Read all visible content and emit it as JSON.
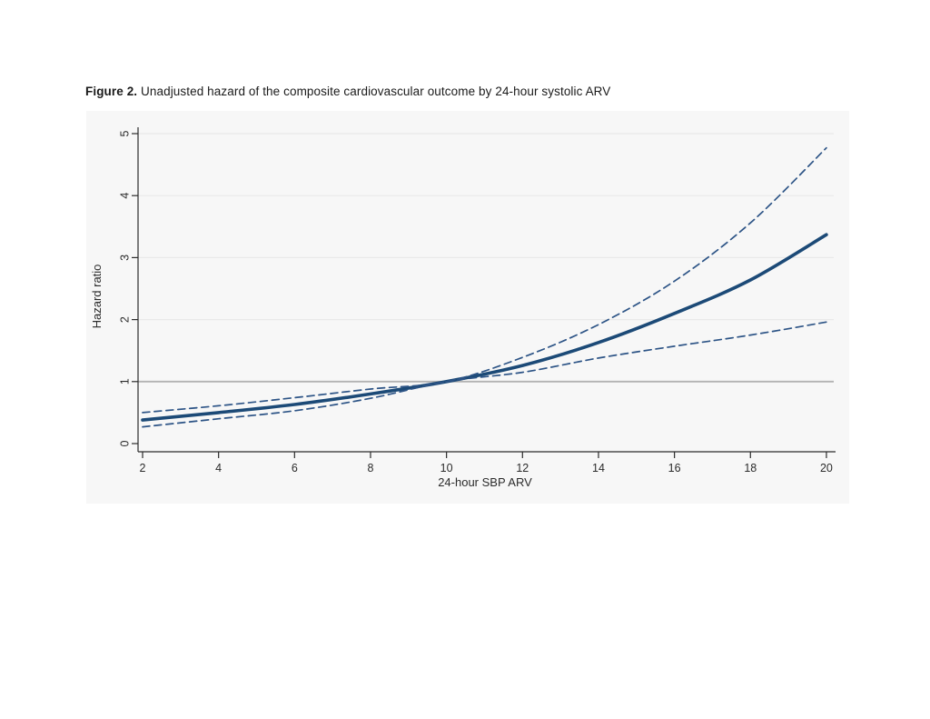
{
  "figure": {
    "caption_prefix": "Figure 2.",
    "caption_text": " Unadjusted hazard of the composite cardiovascular outcome by 24-hour systolic ARV"
  },
  "chart_data": {
    "type": "line",
    "title": "",
    "xlabel": "24-hour SBP ARV",
    "ylabel": "Hazard ratio",
    "xlim": [
      2,
      20
    ],
    "ylim": [
      0,
      5
    ],
    "xticks": [
      2,
      4,
      6,
      8,
      10,
      12,
      14,
      16,
      18,
      20
    ],
    "yticks": [
      0,
      1,
      2,
      3,
      4,
      5
    ],
    "grid": "horizontal-only",
    "legend_position": "none",
    "reference_line_y": 1,
    "x": [
      2,
      4,
      6,
      8,
      10,
      12,
      14,
      16,
      18,
      20
    ],
    "series": [
      {
        "name": "Unadjusted hazard ratio",
        "style": "solid",
        "values": [
          0.38,
          0.5,
          0.63,
          0.8,
          1.0,
          1.26,
          1.63,
          2.1,
          2.64,
          3.37
        ]
      },
      {
        "name": "95% CI upper bound",
        "style": "dashed",
        "values": [
          0.5,
          0.61,
          0.74,
          0.88,
          1.0,
          1.39,
          1.92,
          2.62,
          3.56,
          4.77
        ]
      },
      {
        "name": "95% CI lower bound",
        "style": "dashed",
        "values": [
          0.27,
          0.4,
          0.53,
          0.73,
          1.0,
          1.15,
          1.38,
          1.57,
          1.75,
          1.96
        ]
      }
    ],
    "colors": {
      "line_navy": "#1c4a77",
      "ci_navy": "#2d5486",
      "reference_gray": "#b3b3b3",
      "gridline": "#e9e9e9",
      "axis": "#2b2b2b",
      "tick_label": "#2b2b2b",
      "graph_region_bg": "#f7f7f7"
    }
  }
}
